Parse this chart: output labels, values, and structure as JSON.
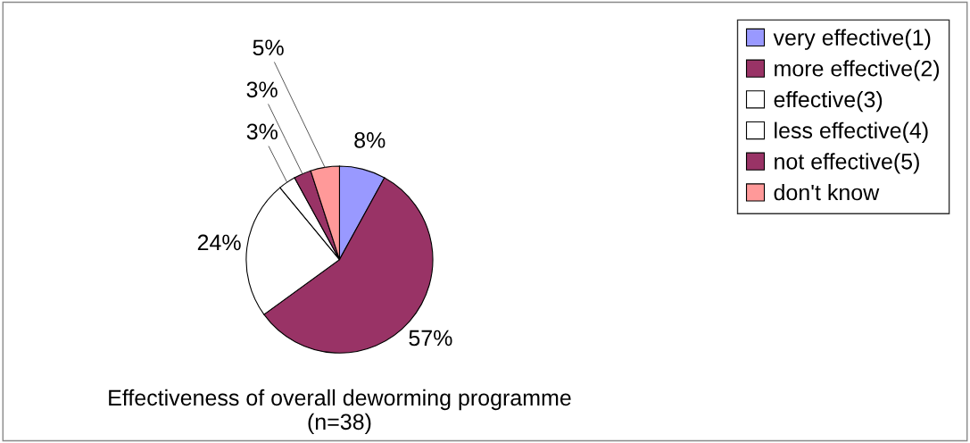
{
  "chart_data": {
    "type": "pie",
    "title": "Effectiveness of overall deworming programme\n(n=38)",
    "categories": [
      "very effective(1)",
      "more effective(2)",
      "effective(3)",
      "less effective(4)",
      "not effective(5)",
      "don't know"
    ],
    "values": [
      8,
      57,
      24,
      3,
      3,
      5
    ],
    "value_labels": [
      "8%",
      "57%",
      "24%",
      "3%",
      "3%",
      "5%"
    ],
    "colors": [
      "#9999ff",
      "#993366",
      "#ffffff",
      "#ffffff",
      "#993366",
      "#ff9999"
    ],
    "legend": "top right"
  }
}
